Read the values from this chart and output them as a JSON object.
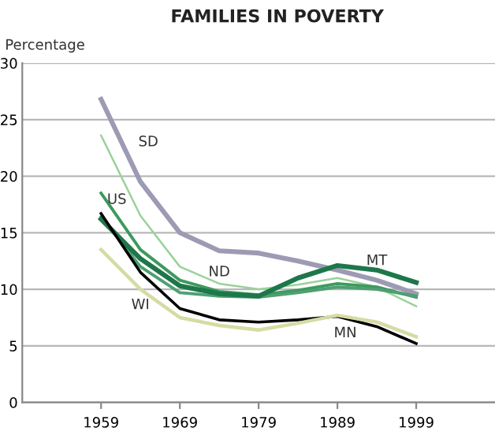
{
  "chart_data": {
    "type": "line",
    "title": "FAMILIES IN POVERTY",
    "ylabel": "Percentage",
    "x": [
      1959,
      1964,
      1969,
      1974,
      1979,
      1984,
      1989,
      1994,
      1999
    ],
    "series": [
      {
        "name": "SD",
        "color": "#9d9bb3",
        "values": [
          26.8,
          19.5,
          15.0,
          13.4,
          13.2,
          12.5,
          11.7,
          10.8,
          9.6
        ]
      },
      {
        "name": "ND",
        "color": "#9ad29a",
        "values": [
          23.6,
          16.5,
          12.0,
          10.5,
          10.0,
          10.4,
          11.0,
          10.2,
          8.5
        ]
      },
      {
        "name": "US",
        "color": "#3d9a5e",
        "values": [
          18.5,
          13.5,
          10.8,
          9.8,
          9.5,
          9.9,
          10.5,
          10.2,
          9.3
        ]
      },
      {
        "color": "#4f9f72",
        "values": [
          16.4,
          12.0,
          9.7,
          9.4,
          9.3,
          9.7,
          10.2,
          10.0,
          9.4
        ]
      },
      {
        "name": "MT",
        "color": "#1d774a",
        "values": [
          16.2,
          12.7,
          10.3,
          9.6,
          9.4,
          11.0,
          12.1,
          11.7,
          10.6
        ]
      },
      {
        "name": "MN",
        "color": "#000000",
        "values": [
          16.7,
          11.5,
          8.3,
          7.3,
          7.1,
          7.3,
          7.6,
          6.7,
          5.2
        ]
      },
      {
        "name": "WI",
        "color": "#d6dba3",
        "values": [
          13.5,
          10.0,
          7.5,
          6.8,
          6.4,
          7.0,
          7.7,
          7.1,
          5.8
        ]
      }
    ],
    "xlim": [
      1949,
      2009
    ],
    "ylim": [
      0,
      30
    ],
    "xticks": [
      1959,
      1969,
      1979,
      1989,
      1999
    ],
    "yticks": [
      0,
      5,
      10,
      15,
      20,
      25,
      30
    ],
    "grid": "y",
    "marker": "none",
    "line_style": "solid"
  }
}
